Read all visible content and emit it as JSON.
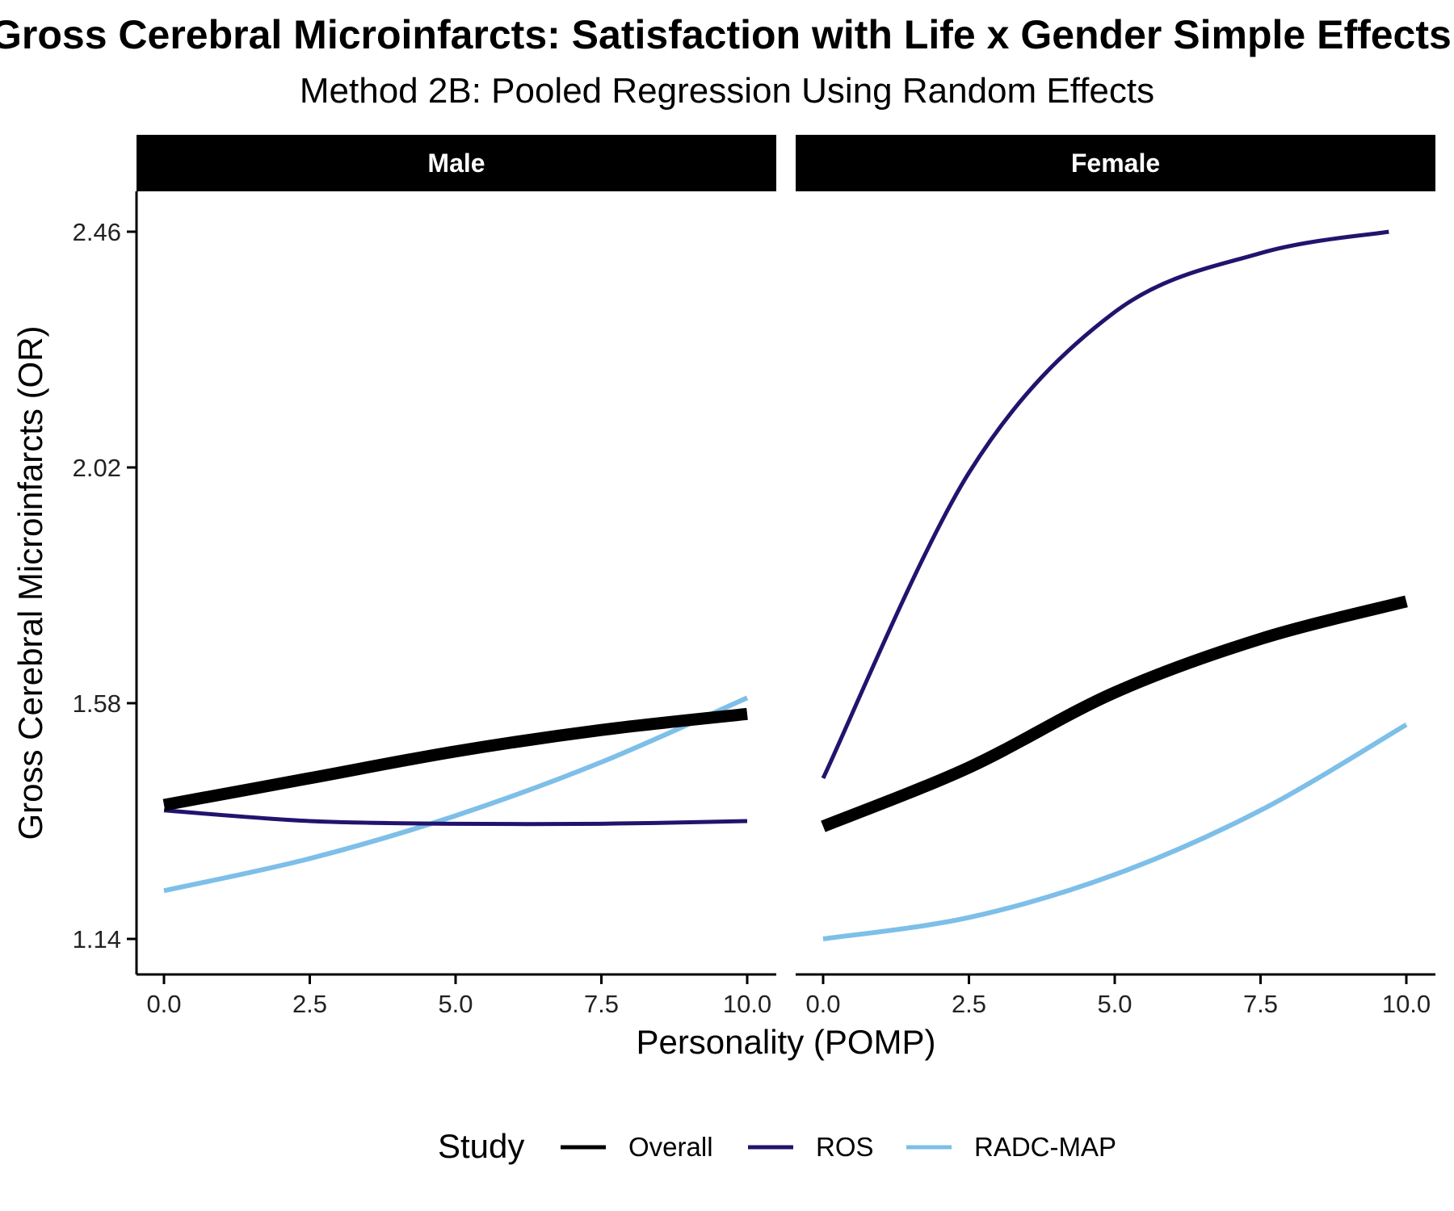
{
  "chart_data": {
    "type": "line",
    "title": "Gross Cerebral Microinfarcts: Satisfaction with Life x Gender Simple Effects",
    "subtitle": "Method 2B: Pooled Regression Using Random Effects",
    "xlabel": "Personality (POMP)",
    "ylabel": "Gross Cerebral Microinfarcts (OR)",
    "xlim": [
      0,
      10
    ],
    "ylim": [
      1.14,
      2.46
    ],
    "x_ticks": [
      "0.0",
      "2.5",
      "5.0",
      "7.5",
      "10.0"
    ],
    "y_ticks": [
      "1.14",
      "1.58",
      "2.02",
      "2.46"
    ],
    "grid": false,
    "legend": {
      "title": "Study",
      "position": "bottom",
      "entries": [
        {
          "label": "Overall",
          "color": "#000000"
        },
        {
          "label": "ROS",
          "color": "#22136e"
        },
        {
          "label": "RADC-MAP",
          "color": "#7dbfe8"
        }
      ]
    },
    "facets": [
      {
        "label": "Male",
        "series": [
          {
            "name": "Overall",
            "color": "#000000",
            "x": [
              0,
              2.5,
              5,
              7.5,
              10
            ],
            "y": [
              1.39,
              1.44,
              1.49,
              1.53,
              1.56
            ]
          },
          {
            "name": "ROS",
            "color": "#22136e",
            "x": [
              0,
              2.5,
              5,
              7.5,
              10
            ],
            "y": [
              1.38,
              1.36,
              1.355,
              1.355,
              1.36
            ]
          },
          {
            "name": "RADC-MAP",
            "color": "#7dbfe8",
            "x": [
              0,
              2.5,
              5,
              7.5,
              10
            ],
            "y": [
              1.23,
              1.29,
              1.37,
              1.47,
              1.59
            ]
          }
        ]
      },
      {
        "label": "Female",
        "series": [
          {
            "name": "Overall",
            "color": "#000000",
            "x": [
              0,
              2.5,
              5,
              7.5,
              10
            ],
            "y": [
              1.35,
              1.46,
              1.6,
              1.7,
              1.77
            ]
          },
          {
            "name": "ROS",
            "color": "#22136e",
            "x": [
              0,
              2.5,
              5,
              7.5,
              9.7
            ],
            "y": [
              1.44,
              2.01,
              2.31,
              2.42,
              2.46
            ]
          },
          {
            "name": "RADC-MAP",
            "color": "#7dbfe8",
            "x": [
              0,
              2.5,
              5,
              7.5,
              10
            ],
            "y": [
              1.14,
              1.18,
              1.26,
              1.38,
              1.54
            ]
          }
        ]
      }
    ]
  }
}
